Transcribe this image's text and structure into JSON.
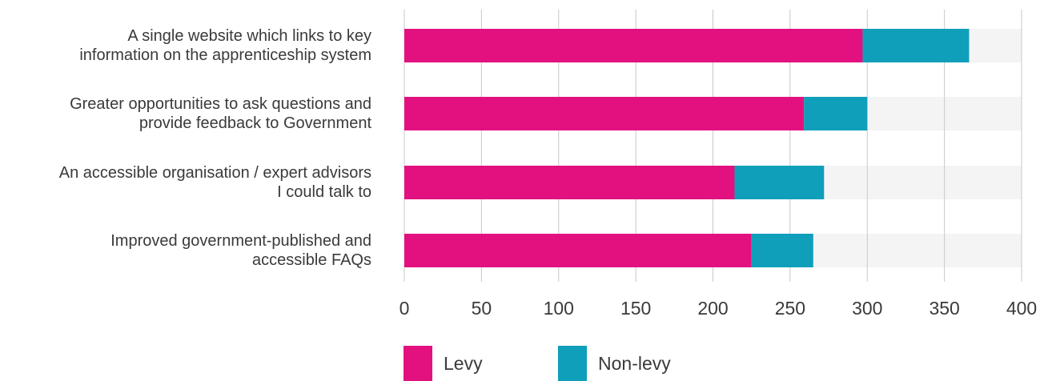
{
  "chart_data": {
    "type": "bar",
    "orientation": "horizontal",
    "stacked": true,
    "categories": [
      [
        "A single website which links to key",
        "information on the apprenticeship system"
      ],
      [
        "Greater opportunities to ask questions and",
        "provide feedback to Government"
      ],
      [
        "An accessible organisation / expert advisors",
        "I could talk to"
      ],
      [
        "Improved government-published and",
        "accessible FAQs"
      ]
    ],
    "series": [
      {
        "name": "Levy",
        "color": "#e3117f",
        "values": [
          297,
          259,
          214,
          225
        ]
      },
      {
        "name": "Non-levy",
        "color": "#0f9fba",
        "values": [
          69,
          41,
          58,
          40
        ]
      }
    ],
    "xlim": [
      0,
      400
    ],
    "xticks": [
      "0",
      "50",
      "100",
      "150",
      "200",
      "250",
      "300",
      "350",
      "400"
    ],
    "background_track_color": "#f4f4f4",
    "grid": true,
    "legend_position": "bottom"
  }
}
